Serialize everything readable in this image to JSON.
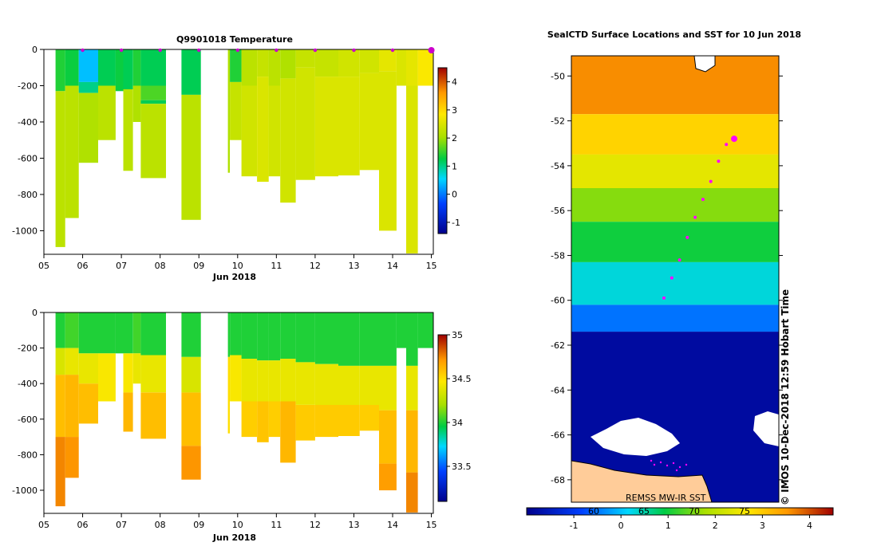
{
  "chart_data": [
    {
      "type": "heatmap",
      "title": "Q9901018  Temperature",
      "xlabel": "Jun 2018",
      "ylabel": "",
      "x_ticks": [
        "05",
        "06",
        "07",
        "08",
        "09",
        "10",
        "11",
        "12",
        "13",
        "14",
        "15"
      ],
      "y_ticks": [
        "0",
        "-200",
        "-400",
        "-600",
        "-800",
        "-1000"
      ],
      "xlim": [
        5,
        15.05
      ],
      "ylim": [
        -1130,
        0
      ],
      "colorbar": {
        "ticks": [
          "4",
          "3",
          "2",
          "1",
          "0",
          "-1"
        ],
        "range": [
          -1.4,
          4.5
        ]
      },
      "profile_markers_x": [
        6,
        7,
        8,
        9,
        10,
        11,
        12,
        13,
        14,
        15
      ],
      "profiles": [
        {
          "x0": 5.3,
          "x1": 5.55,
          "depth": 1090,
          "layers": [
            [
              0,
              230,
              1.4
            ],
            [
              230,
              1090,
              2.2
            ]
          ]
        },
        {
          "x0": 5.55,
          "x1": 5.9,
          "depth": 930,
          "layers": [
            [
              0,
              200,
              1.3
            ],
            [
              200,
              930,
              2.2
            ]
          ]
        },
        {
          "x0": 5.9,
          "x1": 6.4,
          "depth": 625,
          "layers": [
            [
              0,
              180,
              0.4
            ],
            [
              180,
              240,
              1.0
            ],
            [
              240,
              625,
              2.1
            ]
          ]
        },
        {
          "x0": 6.4,
          "x1": 6.85,
          "depth": 500,
          "layers": [
            [
              0,
              200,
              1.2
            ],
            [
              200,
              500,
              2.2
            ]
          ]
        },
        {
          "x0": 6.85,
          "x1": 7.05,
          "depth": 230,
          "layers": [
            [
              0,
              230,
              1.3
            ]
          ]
        },
        {
          "x0": 7.05,
          "x1": 7.3,
          "depth": 670,
          "layers": [
            [
              0,
              220,
              1.2
            ],
            [
              220,
              670,
              2.2
            ]
          ]
        },
        {
          "x0": 7.3,
          "x1": 7.5,
          "depth": 400,
          "layers": [
            [
              0,
              200,
              1.4
            ],
            [
              200,
              400,
              2.1
            ]
          ]
        },
        {
          "x0": 7.5,
          "x1": 8.15,
          "depth": 710,
          "layers": [
            [
              0,
              200,
              1.2
            ],
            [
              200,
              280,
              1.6
            ],
            [
              280,
              300,
              1.2
            ],
            [
              300,
              710,
              2.2
            ]
          ]
        },
        {
          "x0": 8.55,
          "x1": 9.05,
          "depth": 940,
          "layers": [
            [
              0,
              250,
              1.2
            ],
            [
              250,
              940,
              2.2
            ]
          ]
        },
        {
          "x0": 9.75,
          "x1": 9.8,
          "depth": 680,
          "layers": [
            [
              0,
              680,
              2.1
            ]
          ]
        },
        {
          "x0": 9.8,
          "x1": 10.1,
          "depth": 500,
          "layers": [
            [
              0,
              180,
              1.4
            ],
            [
              180,
              500,
              2.3
            ]
          ]
        },
        {
          "x0": 10.1,
          "x1": 10.5,
          "depth": 700,
          "layers": [
            [
              0,
              200,
              2.2
            ],
            [
              200,
              700,
              2.4
            ]
          ]
        },
        {
          "x0": 10.5,
          "x1": 10.8,
          "depth": 730,
          "layers": [
            [
              0,
              150,
              2.3
            ],
            [
              150,
              730,
              2.5
            ]
          ]
        },
        {
          "x0": 10.8,
          "x1": 11.1,
          "depth": 700,
          "layers": [
            [
              0,
              200,
              2.2
            ],
            [
              200,
              700,
              2.4
            ]
          ]
        },
        {
          "x0": 11.1,
          "x1": 11.5,
          "depth": 845,
          "layers": [
            [
              0,
              160,
              2.1
            ],
            [
              160,
              845,
              2.4
            ]
          ]
        },
        {
          "x0": 11.5,
          "x1": 12.0,
          "depth": 720,
          "layers": [
            [
              0,
              100,
              2.3
            ],
            [
              100,
              720,
              2.4
            ]
          ]
        },
        {
          "x0": 12.0,
          "x1": 12.6,
          "depth": 700,
          "layers": [
            [
              0,
              150,
              2.3
            ],
            [
              150,
              700,
              2.5
            ]
          ]
        },
        {
          "x0": 12.6,
          "x1": 13.15,
          "depth": 695,
          "layers": [
            [
              0,
              150,
              2.4
            ],
            [
              150,
              695,
              2.5
            ]
          ]
        },
        {
          "x0": 13.15,
          "x1": 13.65,
          "depth": 665,
          "layers": [
            [
              0,
              130,
              2.4
            ],
            [
              130,
              665,
              2.5
            ]
          ]
        },
        {
          "x0": 13.65,
          "x1": 14.1,
          "depth": 1000,
          "layers": [
            [
              0,
              120,
              2.6
            ],
            [
              120,
              1000,
              2.5
            ]
          ]
        },
        {
          "x0": 14.1,
          "x1": 14.35,
          "depth": 200,
          "layers": [
            [
              0,
              200,
              2.5
            ]
          ]
        },
        {
          "x0": 14.35,
          "x1": 14.65,
          "depth": 1125,
          "layers": [
            [
              0,
              200,
              2.6
            ],
            [
              200,
              1125,
              2.5
            ]
          ]
        },
        {
          "x0": 14.65,
          "x1": 15.05,
          "depth": 200,
          "layers": [
            [
              0,
              200,
              2.8
            ]
          ]
        }
      ]
    },
    {
      "type": "heatmap",
      "title": "",
      "xlabel": "Jun 2018",
      "ylabel": "",
      "x_ticks": [
        "05",
        "06",
        "07",
        "08",
        "09",
        "10",
        "11",
        "12",
        "13",
        "14",
        "15"
      ],
      "y_ticks": [
        "0",
        "-200",
        "-400",
        "-600",
        "-800",
        "-1000"
      ],
      "xlim": [
        5,
        15.05
      ],
      "ylim": [
        -1130,
        0
      ],
      "colorbar": {
        "ticks": [
          "35",
          "34.5",
          "34",
          "33.5"
        ],
        "range": [
          33.1,
          35.0
        ]
      },
      "profiles": [
        {
          "x0": 5.3,
          "x1": 5.55,
          "depth": 1090,
          "layers": [
            [
              0,
              200,
              34.0
            ],
            [
              200,
              350,
              34.35
            ],
            [
              350,
              700,
              34.6
            ],
            [
              700,
              1090,
              34.75
            ]
          ]
        },
        {
          "x0": 5.55,
          "x1": 5.9,
          "depth": 930,
          "layers": [
            [
              0,
              200,
              34.05
            ],
            [
              200,
              350,
              34.4
            ],
            [
              350,
              700,
              34.62
            ],
            [
              700,
              930,
              34.72
            ]
          ]
        },
        {
          "x0": 5.9,
          "x1": 6.4,
          "depth": 625,
          "layers": [
            [
              0,
              230,
              34.0
            ],
            [
              230,
              400,
              34.4
            ],
            [
              400,
              625,
              34.6
            ]
          ]
        },
        {
          "x0": 6.4,
          "x1": 6.85,
          "depth": 500,
          "layers": [
            [
              0,
              230,
              34.0
            ],
            [
              230,
              500,
              34.45
            ]
          ]
        },
        {
          "x0": 6.85,
          "x1": 7.05,
          "depth": 230,
          "layers": [
            [
              0,
              230,
              34.0
            ]
          ]
        },
        {
          "x0": 7.05,
          "x1": 7.3,
          "depth": 670,
          "layers": [
            [
              0,
              230,
              34.0
            ],
            [
              230,
              450,
              34.45
            ],
            [
              450,
              670,
              34.62
            ]
          ]
        },
        {
          "x0": 7.3,
          "x1": 7.5,
          "depth": 400,
          "layers": [
            [
              0,
              230,
              34.05
            ],
            [
              230,
              400,
              34.4
            ]
          ]
        },
        {
          "x0": 7.5,
          "x1": 8.15,
          "depth": 710,
          "layers": [
            [
              0,
              240,
              34.0
            ],
            [
              240,
              450,
              34.4
            ],
            [
              450,
              710,
              34.6
            ]
          ]
        },
        {
          "x0": 8.55,
          "x1": 9.05,
          "depth": 940,
          "layers": [
            [
              0,
              250,
              34.0
            ],
            [
              250,
              450,
              34.35
            ],
            [
              450,
              750,
              34.6
            ],
            [
              750,
              940,
              34.72
            ]
          ]
        },
        {
          "x0": 9.75,
          "x1": 9.8,
          "depth": 680,
          "layers": [
            [
              0,
              250,
              34.0
            ],
            [
              250,
              680,
              34.5
            ]
          ]
        },
        {
          "x0": 9.8,
          "x1": 10.1,
          "depth": 500,
          "layers": [
            [
              0,
              240,
              34.0
            ],
            [
              240,
              500,
              34.45
            ]
          ]
        },
        {
          "x0": 10.1,
          "x1": 10.5,
          "depth": 700,
          "layers": [
            [
              0,
              260,
              34.0
            ],
            [
              260,
              500,
              34.4
            ],
            [
              500,
              700,
              34.55
            ]
          ]
        },
        {
          "x0": 10.5,
          "x1": 10.8,
          "depth": 730,
          "layers": [
            [
              0,
              270,
              34.0
            ],
            [
              270,
              500,
              34.4
            ],
            [
              500,
              730,
              34.58
            ]
          ]
        },
        {
          "x0": 10.8,
          "x1": 11.1,
          "depth": 700,
          "layers": [
            [
              0,
              270,
              34.0
            ],
            [
              270,
              500,
              34.4
            ],
            [
              500,
              700,
              34.55
            ]
          ]
        },
        {
          "x0": 11.1,
          "x1": 11.5,
          "depth": 845,
          "layers": [
            [
              0,
              260,
              34.0
            ],
            [
              260,
              500,
              34.4
            ],
            [
              500,
              845,
              34.62
            ]
          ]
        },
        {
          "x0": 11.5,
          "x1": 12.0,
          "depth": 720,
          "layers": [
            [
              0,
              280,
              34.0
            ],
            [
              280,
              520,
              34.4
            ],
            [
              520,
              720,
              34.56
            ]
          ]
        },
        {
          "x0": 12.0,
          "x1": 12.6,
          "depth": 700,
          "layers": [
            [
              0,
              290,
              34.0
            ],
            [
              290,
              520,
              34.4
            ],
            [
              520,
              700,
              34.56
            ]
          ]
        },
        {
          "x0": 12.6,
          "x1": 13.15,
          "depth": 695,
          "layers": [
            [
              0,
              300,
              34.0
            ],
            [
              300,
              520,
              34.4
            ],
            [
              520,
              695,
              34.56
            ]
          ]
        },
        {
          "x0": 13.15,
          "x1": 13.65,
          "depth": 665,
          "layers": [
            [
              0,
              300,
              34.0
            ],
            [
              300,
              520,
              34.4
            ],
            [
              520,
              665,
              34.55
            ]
          ]
        },
        {
          "x0": 13.65,
          "x1": 14.1,
          "depth": 1000,
          "layers": [
            [
              0,
              300,
              34.0
            ],
            [
              300,
              550,
              34.4
            ],
            [
              550,
              850,
              34.6
            ],
            [
              850,
              1000,
              34.7
            ]
          ]
        },
        {
          "x0": 14.1,
          "x1": 14.35,
          "depth": 200,
          "layers": [
            [
              0,
              200,
              34.0
            ]
          ]
        },
        {
          "x0": 14.35,
          "x1": 14.65,
          "depth": 1125,
          "layers": [
            [
              0,
              300,
              34.0
            ],
            [
              300,
              550,
              34.4
            ],
            [
              550,
              900,
              34.62
            ],
            [
              900,
              1125,
              34.75
            ]
          ]
        },
        {
          "x0": 14.65,
          "x1": 15.05,
          "depth": 200,
          "layers": [
            [
              0,
              200,
              34.0
            ]
          ]
        }
      ]
    },
    {
      "type": "heatmap",
      "title": "SealCTD Surface Locations and SST for 10 Jun 2018",
      "xlabel": "",
      "ylabel": "",
      "y_ticks": [
        "-50",
        "-52",
        "-54",
        "-56",
        "-58",
        "-60",
        "-62",
        "-64",
        "-66",
        "-68"
      ],
      "ylim": [
        -69.0,
        -49.1
      ],
      "colorbar": {
        "ticks": [
          "-1",
          "0",
          "1",
          "2",
          "3",
          "4"
        ],
        "range": [
          -2.0,
          4.5
        ],
        "secondary_ticks": [
          "60",
          "65",
          "70",
          "75"
        ]
      },
      "zones": [
        {
          "lat_top": -49.1,
          "lat_bottom": -51.7,
          "sst": 3.6
        },
        {
          "lat_top": -51.7,
          "lat_bottom": -53.5,
          "sst": 2.9
        },
        {
          "lat_top": -53.5,
          "lat_bottom": -55.0,
          "sst": 2.4
        },
        {
          "lat_top": -55.0,
          "lat_bottom": -56.5,
          "sst": 1.6
        },
        {
          "lat_top": -56.5,
          "lat_bottom": -58.3,
          "sst": 1.0
        },
        {
          "lat_top": -58.3,
          "lat_bottom": -60.2,
          "sst": 0.3
        },
        {
          "lat_top": -60.2,
          "lat_bottom": -61.4,
          "sst": -0.5
        },
        {
          "lat_top": -61.4,
          "lat_bottom": -69.0,
          "sst": -1.8
        }
      ],
      "track_latitudes": [
        -52.8,
        -53.05,
        -53.8,
        -54.7,
        -55.5,
        -56.3,
        -57.2,
        -58.2,
        -59.0,
        -59.9
      ],
      "current_position_latitude": -52.8,
      "source_label": "REMSS MW-IR SST",
      "credit": "© IMOS 10-Dec-2018 12:59 Hobart Time"
    }
  ]
}
